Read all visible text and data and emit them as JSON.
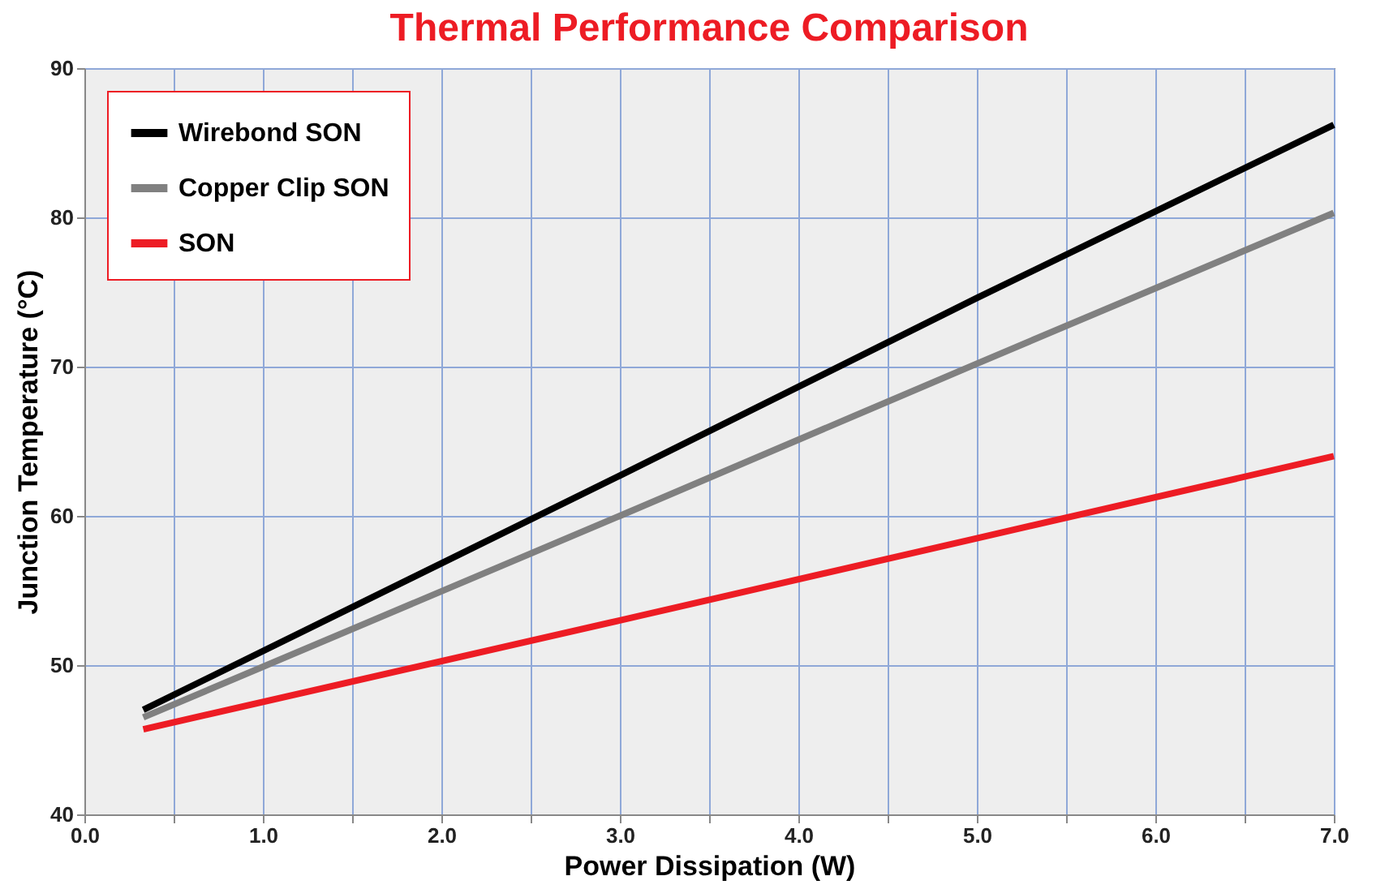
{
  "chart_data": {
    "type": "line",
    "title": "Thermal Performance Comparison",
    "xlabel": "Power Dissipation (W)",
    "ylabel": "Junction Temperature (°C)",
    "xlim": [
      0,
      7
    ],
    "ylim": [
      40,
      90
    ],
    "xticks": [
      {
        "value": 0,
        "label": "0.0"
      },
      {
        "value": 0.5,
        "label": null
      },
      {
        "value": 1,
        "label": "1.0"
      },
      {
        "value": 1.5,
        "label": null
      },
      {
        "value": 2,
        "label": "2.0"
      },
      {
        "value": 2.5,
        "label": null
      },
      {
        "value": 3,
        "label": "3.0"
      },
      {
        "value": 3.5,
        "label": null
      },
      {
        "value": 4,
        "label": "4.0"
      },
      {
        "value": 4.5,
        "label": null
      },
      {
        "value": 5,
        "label": "5.0"
      },
      {
        "value": 5.5,
        "label": null
      },
      {
        "value": 6,
        "label": "6.0"
      },
      {
        "value": 6.5,
        "label": null
      },
      {
        "value": 7,
        "label": "7.0"
      }
    ],
    "yticks": [
      40,
      50,
      60,
      70,
      80,
      90
    ],
    "x": [
      0.33,
      3,
      5,
      7
    ],
    "series": [
      {
        "name": "Wirebond SON",
        "color": "#000000",
        "values": [
          47,
          62.7,
          74.6,
          86.2
        ]
      },
      {
        "name": "Copper Clip SON",
        "color": "#808080",
        "values": [
          46.5,
          60,
          70.2,
          80.3
        ]
      },
      {
        "name": "SON",
        "color": "#ed1c24",
        "values": [
          45.7,
          53,
          58.5,
          64
        ]
      }
    ],
    "grid": true,
    "legend": "top left",
    "marker": "none",
    "line_style": "solid"
  }
}
